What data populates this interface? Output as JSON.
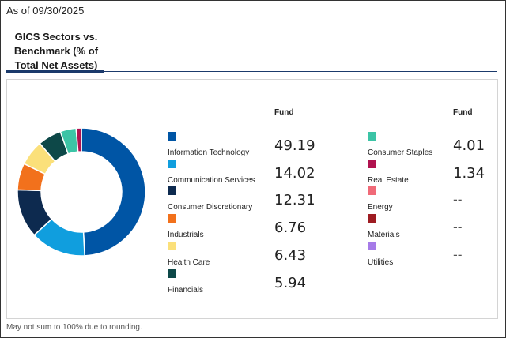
{
  "as_of": "As of 09/30/2025",
  "tab": {
    "line1": "GICS Sectors vs.",
    "line2": "Benchmark (% of",
    "line3": "Total Net Assets)"
  },
  "columns": {
    "left_header": "Fund",
    "right_header": "Fund"
  },
  "sectors_left": [
    {
      "label": "Information Technology",
      "value": "49.19",
      "color": "#0055a5"
    },
    {
      "label": "Communication Services",
      "value": "14.02",
      "color": "#109ede"
    },
    {
      "label": "Consumer Discretionary",
      "value": "12.31",
      "color": "#0d2a4f"
    },
    {
      "label": "Industrials",
      "value": "6.76",
      "color": "#f2711c"
    },
    {
      "label": "Health Care",
      "value": "6.43",
      "color": "#fbe07a"
    },
    {
      "label": "Financials",
      "value": "5.94",
      "color": "#0d4848"
    }
  ],
  "sectors_right": [
    {
      "label": "Consumer Staples",
      "value": "4.01",
      "color": "#3cc4a6"
    },
    {
      "label": "Real Estate",
      "value": "1.34",
      "color": "#b0124f"
    },
    {
      "label": "Energy",
      "value": "--",
      "color": "#f06a78"
    },
    {
      "label": "Materials",
      "value": "--",
      "color": "#9e1c22"
    },
    {
      "label": "Utilities",
      "value": "--",
      "color": "#a67be8"
    }
  ],
  "chart_data": {
    "type": "pie",
    "donut": true,
    "categories": [
      "Information Technology",
      "Communication Services",
      "Consumer Discretionary",
      "Industrials",
      "Health Care",
      "Financials",
      "Consumer Staples",
      "Real Estate"
    ],
    "values": [
      49.19,
      14.02,
      12.31,
      6.76,
      6.43,
      5.94,
      4.01,
      1.34
    ],
    "colors": [
      "#0055a5",
      "#109ede",
      "#0d2a4f",
      "#f2711c",
      "#fbe07a",
      "#0d4848",
      "#3cc4a6",
      "#b0124f"
    ]
  },
  "footnote": "May not sum to 100% due to rounding."
}
